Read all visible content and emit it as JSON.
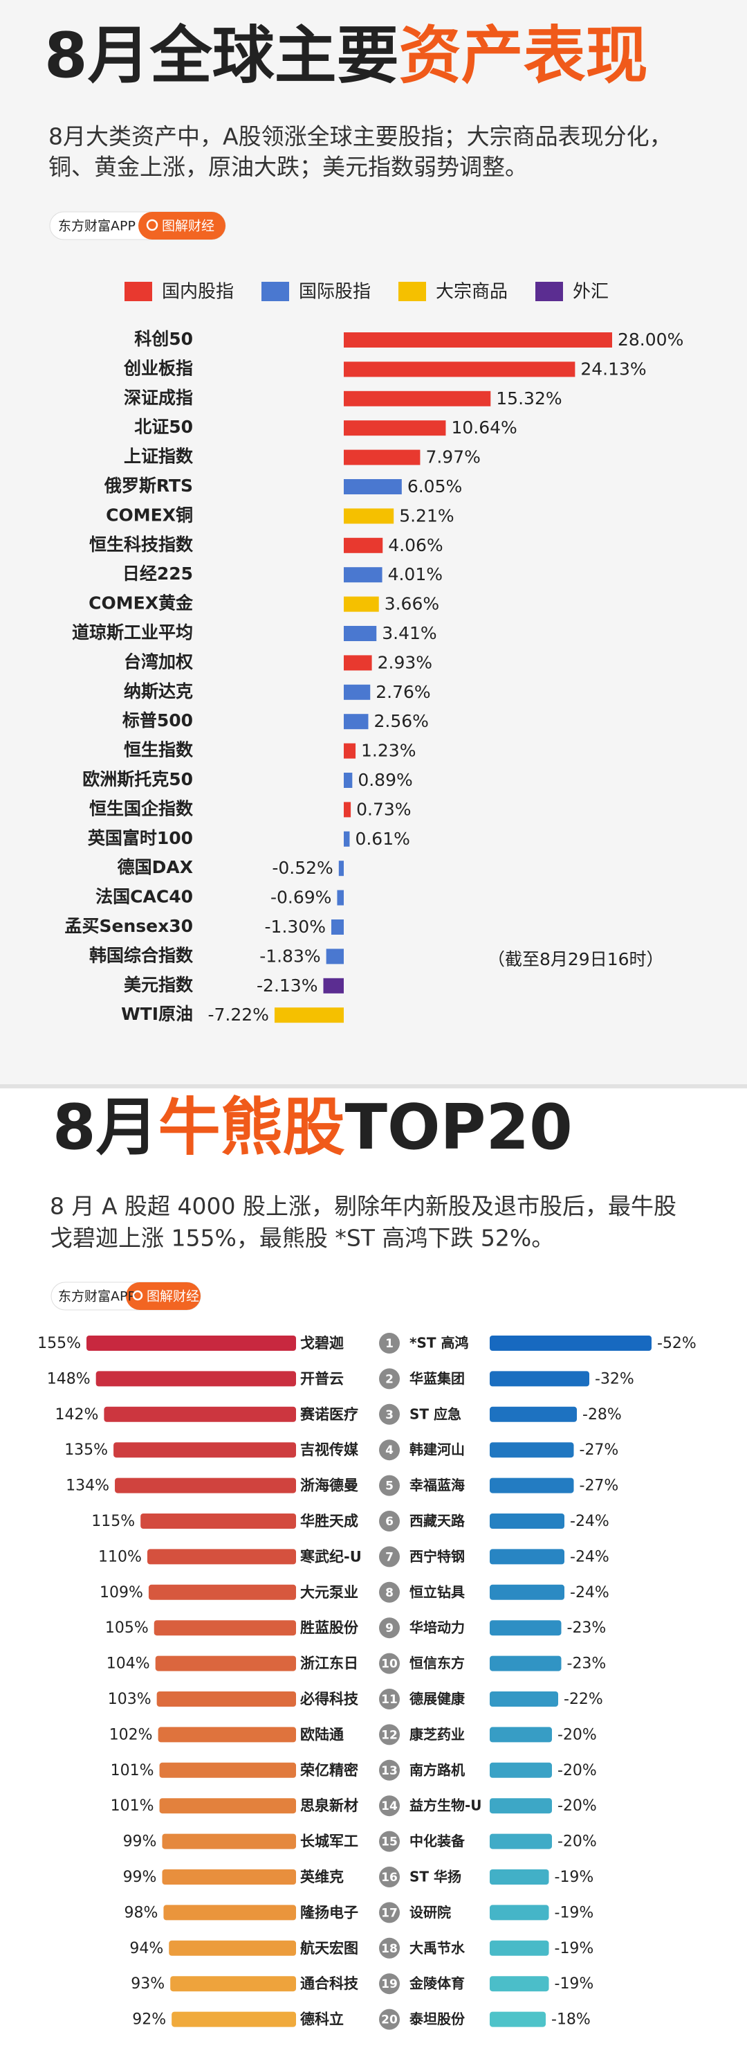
{
  "chart_data": [
    {
      "type": "bar",
      "title": [
        "8月全球主要",
        "资产表现"
      ],
      "subtitle": [
        "8月大类资产中，A股领涨全球主要股指；大宗商品表现分化，",
        "铜、黄金上涨，原油大跌；美元指数弱势调整。"
      ],
      "source": [
        "东方财富APP",
        "图解财经"
      ],
      "annotation": "（截至8月29日16时）",
      "categories": [
        "科创50",
        "创业板指",
        "深证成指",
        "北证50",
        "上证指数",
        "俄罗斯RTS",
        "COMEX铜",
        "恒生科技指数",
        "日经225",
        "COMEX黄金",
        "道琼斯工业平均",
        "台湾加权",
        "纳斯达克",
        "标普500",
        "恒生指数",
        "欧洲斯托克50",
        "恒生国企指数",
        "英国富时100",
        "德国DAX",
        "法国CAC40",
        "孟买Sensex30",
        "韩国综合指数",
        "美元指数",
        "WTI原油"
      ],
      "series": [
        {
          "name": "国内股指",
          "color": "#e8392f",
          "values": [
            28.0,
            24.13,
            15.32,
            10.64,
            7.97,
            null,
            null,
            4.06,
            null,
            null,
            null,
            2.93,
            null,
            null,
            1.23,
            null,
            0.73,
            null,
            null,
            null,
            null,
            null,
            null,
            null
          ],
          "value_labels": [
            "28.00%",
            "24.13%",
            "15.32%",
            "10.64%",
            "7.97%",
            null,
            null,
            "4.06%",
            null,
            null,
            null,
            "2.93%",
            null,
            null,
            "1.23%",
            null,
            "0.73%",
            null,
            null,
            null,
            null,
            null,
            null,
            null
          ]
        },
        {
          "name": "国际股指",
          "color": "#4a78d0",
          "values": [
            null,
            null,
            null,
            null,
            null,
            6.05,
            null,
            null,
            4.01,
            null,
            3.41,
            null,
            2.76,
            2.56,
            null,
            0.89,
            null,
            0.61,
            -0.52,
            -0.69,
            -1.3,
            -1.83,
            null,
            null
          ],
          "value_labels": [
            null,
            null,
            null,
            null,
            null,
            "6.05%",
            null,
            null,
            "4.01%",
            null,
            "3.41%",
            null,
            "2.76%",
            "2.56%",
            null,
            "0.89%",
            null,
            "0.61%",
            "-0.52%",
            "-0.69%",
            "-1.30%",
            "-1.83%",
            null,
            null
          ]
        },
        {
          "name": "大宗商品",
          "color": "#f5c000",
          "values": [
            null,
            null,
            null,
            null,
            null,
            null,
            5.21,
            null,
            null,
            3.66,
            null,
            null,
            null,
            null,
            null,
            null,
            null,
            null,
            null,
            null,
            null,
            null,
            null,
            -7.22
          ],
          "value_labels": [
            null,
            null,
            null,
            null,
            null,
            null,
            "5.21%",
            null,
            null,
            "3.66%",
            null,
            null,
            null,
            null,
            null,
            null,
            null,
            null,
            null,
            null,
            null,
            null,
            null,
            "-7.22%"
          ]
        },
        {
          "name": "外汇",
          "color": "#5b2d91",
          "values": [
            null,
            null,
            null,
            null,
            null,
            null,
            null,
            null,
            null,
            null,
            null,
            null,
            null,
            null,
            null,
            null,
            null,
            null,
            null,
            null,
            null,
            null,
            -2.13,
            null
          ],
          "value_labels": [
            null,
            null,
            null,
            null,
            null,
            null,
            null,
            null,
            null,
            null,
            null,
            null,
            null,
            null,
            null,
            null,
            null,
            null,
            null,
            null,
            null,
            null,
            "-2.13%",
            null
          ]
        }
      ]
    },
    {
      "type": "ranking",
      "title": [
        "8月",
        "牛熊股",
        "TOP20"
      ],
      "subtitle": [
        "8 月 A 股超 4000 股上涨，剔除年内新股及退市股后，最牛股",
        "戈碧迦上涨 155%，最熊股 *ST 高鸿下跌 52%。"
      ],
      "source": [
        "东方财富APP",
        "图解财经"
      ],
      "ranks": [
        1,
        2,
        3,
        4,
        5,
        6,
        7,
        8,
        9,
        10,
        11,
        12,
        13,
        14,
        15,
        16,
        17,
        18,
        19,
        20
      ],
      "series": [
        {
          "color": [
            "#c8283f",
            "#f0aa3c"
          ],
          "categories": [
            "戈碧迦",
            "开普云",
            "赛诺医疗",
            "吉视传媒",
            "浙海德曼",
            "华胜天成",
            "寒武纪-U",
            "大元泵业",
            "胜蓝股份",
            "浙江东日",
            "必得科技",
            "欧陆通",
            "荣亿精密",
            "思泉新材",
            "长城军工",
            "英维克",
            "隆扬电子",
            "航天宏图",
            "通合科技",
            "德科立"
          ],
          "values": [
            155,
            148,
            142,
            135,
            134,
            115,
            110,
            109,
            105,
            104,
            103,
            102,
            101,
            101,
            99,
            99,
            98,
            94,
            93,
            92
          ],
          "value_labels": [
            "155%",
            "148%",
            "142%",
            "135%",
            "134%",
            "115%",
            "110%",
            "109%",
            "105%",
            "104%",
            "103%",
            "102%",
            "101%",
            "101%",
            "99%",
            "99%",
            "98%",
            "94%",
            "93%",
            "92%"
          ]
        },
        {
          "color": [
            "#1769c0",
            "#4ec3c9"
          ],
          "categories": [
            "*ST 高鸿",
            "华蓝集团",
            "ST 应急",
            "韩建河山",
            "幸福蓝海",
            "西藏天路",
            "西宁特钢",
            "恒立钻具",
            "华培动力",
            "恒信东方",
            "德展健康",
            "康芝药业",
            "南方路机",
            "益方生物-U",
            "中化装备",
            "ST 华扬",
            "设研院",
            "大禹节水",
            "金陵体育",
            "泰坦股份"
          ],
          "values": [
            -52,
            -32,
            -28,
            -27,
            -27,
            -24,
            -24,
            -24,
            -23,
            -23,
            -22,
            -20,
            -20,
            -20,
            -20,
            -19,
            -19,
            -19,
            -19,
            -18
          ],
          "value_labels": [
            "-52%",
            "-32%",
            "-28%",
            "-27%",
            "-27%",
            "-24%",
            "-24%",
            "-24%",
            "-23%",
            "-23%",
            "-22%",
            "-20%",
            "-20%",
            "-20%",
            "-20%",
            "-19%",
            "-19%",
            "-19%",
            "-19%",
            "-18%"
          ]
        }
      ]
    }
  ]
}
